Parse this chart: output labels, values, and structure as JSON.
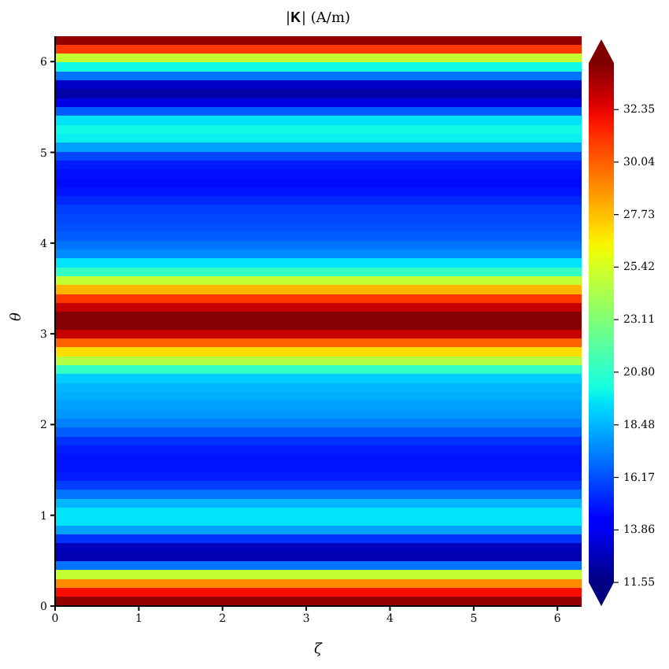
{
  "chart_data": {
    "type": "heatmap",
    "title": "|𝐊| (A/m)",
    "xlabel": "ζ",
    "ylabel": "θ",
    "y": [
      6.231,
      6.133,
      6.035,
      5.937,
      5.838,
      5.74,
      5.642,
      5.544,
      5.446,
      5.348,
      5.25,
      5.152,
      5.053,
      4.955,
      4.857,
      4.759,
      4.661,
      4.563,
      4.465,
      4.367,
      4.268,
      4.17,
      4.072,
      3.974,
      3.876,
      3.778,
      3.68,
      3.582,
      3.483,
      3.385,
      3.287,
      3.189,
      3.091,
      2.993,
      2.895,
      2.797,
      2.698,
      2.6,
      2.502,
      2.404,
      2.306,
      2.208,
      2.11,
      2.012,
      1.913,
      1.815,
      1.717,
      1.619,
      1.521,
      1.423,
      1.325,
      1.227,
      1.128,
      1.03,
      0.932,
      0.834,
      0.736,
      0.638,
      0.54,
      0.442,
      0.343,
      0.245,
      0.147,
      0.049
    ],
    "cells": [
      [
        34.0
      ],
      [
        31.0
      ],
      [
        25.0
      ],
      [
        20.0
      ],
      [
        17.0
      ],
      [
        13.0
      ],
      [
        12.3
      ],
      [
        13.5
      ],
      [
        16.5
      ],
      [
        19.5
      ],
      [
        20.0
      ],
      [
        19.8
      ],
      [
        18.0
      ],
      [
        16.0
      ],
      [
        15.0
      ],
      [
        14.7
      ],
      [
        14.6
      ],
      [
        14.8
      ],
      [
        15.3
      ],
      [
        15.8
      ],
      [
        16.0
      ],
      [
        16.2
      ],
      [
        16.5
      ],
      [
        17.0
      ],
      [
        17.5
      ],
      [
        19.5
      ],
      [
        21.0
      ],
      [
        25.0
      ],
      [
        28.0
      ],
      [
        31.0
      ],
      [
        33.0
      ],
      [
        34.3
      ],
      [
        34.3
      ],
      [
        33.0
      ],
      [
        30.0
      ],
      [
        27.0
      ],
      [
        24.5
      ],
      [
        21.0
      ],
      [
        19.0
      ],
      [
        18.5
      ],
      [
        18.3
      ],
      [
        18.0
      ],
      [
        17.8
      ],
      [
        17.3
      ],
      [
        16.5
      ],
      [
        15.5
      ],
      [
        15.0
      ],
      [
        14.8
      ],
      [
        14.8
      ],
      [
        15.0
      ],
      [
        15.8
      ],
      [
        17.0
      ],
      [
        18.5
      ],
      [
        19.5
      ],
      [
        19.5
      ],
      [
        18.0
      ],
      [
        15.5
      ],
      [
        12.8
      ],
      [
        12.5
      ],
      [
        17.0
      ],
      [
        25.0
      ],
      [
        29.0
      ],
      [
        32.0
      ],
      [
        34.0
      ]
    ],
    "xlim": [
      0,
      6.28
    ],
    "xticks": [
      0,
      1,
      2,
      3,
      4,
      5,
      6
    ],
    "ylim": [
      0,
      6.28
    ],
    "yticks": [
      0,
      1,
      2,
      3,
      4,
      5,
      6
    ],
    "clim": [
      11.55,
      34.4
    ],
    "cticks": [
      11.55,
      13.86,
      16.17,
      18.48,
      {
        "value": 20.8,
        "label": "20.80"
      },
      23.11,
      25.42,
      27.73,
      30.04,
      32.35
    ]
  }
}
